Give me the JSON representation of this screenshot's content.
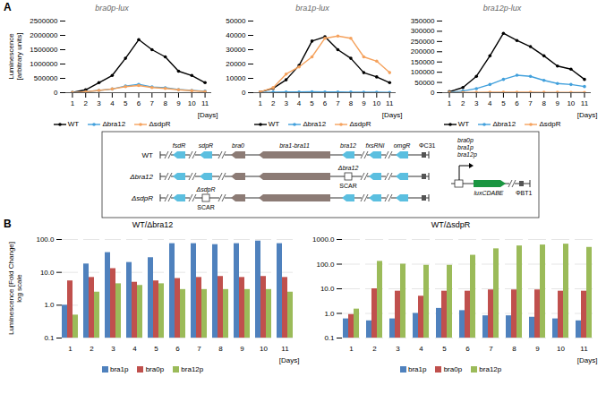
{
  "chart_data": [
    {
      "type": "line",
      "panel_label": "A",
      "title": "bra0p-lux",
      "x": [
        1,
        2,
        3,
        4,
        5,
        6,
        7,
        8,
        9,
        10,
        11
      ],
      "xlim": [
        0.5,
        11.5
      ],
      "xticks": [
        1,
        2,
        3,
        4,
        5,
        6,
        7,
        8,
        9,
        10,
        11
      ],
      "x_label": "[Days]",
      "y_label": "Luminescence [arbitrary units]",
      "ylim": [
        0,
        2500000
      ],
      "yticks": [
        0,
        500000,
        1000000,
        1500000,
        2000000,
        2500000
      ],
      "grid": false,
      "legend": "bottom",
      "series": [
        {
          "name": "WT",
          "color": "#000000",
          "marker": "circle",
          "values": [
            10000,
            100000,
            350000,
            600000,
            1200000,
            1850000,
            1500000,
            1250000,
            750000,
            600000,
            350000
          ]
        },
        {
          "name": "Δbra12",
          "color": "#41a0dc",
          "marker": "circle",
          "values": [
            5000,
            30000,
            80000,
            130000,
            230000,
            290000,
            200000,
            170000,
            110000,
            80000,
            50000
          ]
        },
        {
          "name": "ΔsdpR",
          "color": "#f5a25d",
          "marker": "circle",
          "values": [
            5000,
            30000,
            80000,
            130000,
            210000,
            250000,
            180000,
            150000,
            100000,
            70000,
            40000
          ]
        }
      ]
    },
    {
      "type": "line",
      "title": "bra1p-lux",
      "x": [
        1,
        2,
        3,
        4,
        5,
        6,
        7,
        8,
        9,
        10,
        11
      ],
      "xlim": [
        0.5,
        11.5
      ],
      "xticks": [
        1,
        2,
        3,
        4,
        5,
        6,
        7,
        8,
        9,
        10,
        11
      ],
      "x_label": "[Days]",
      "ylim": [
        0,
        50000
      ],
      "yticks": [
        0,
        10000,
        20000,
        30000,
        40000,
        50000
      ],
      "grid": false,
      "legend": "bottom",
      "series": [
        {
          "name": "WT",
          "color": "#000000",
          "marker": "circle",
          "values": [
            500,
            3000,
            9000,
            19000,
            36000,
            39000,
            30000,
            24000,
            14000,
            11000,
            7000
          ]
        },
        {
          "name": "Δbra12",
          "color": "#41a0dc",
          "marker": "circle",
          "values": [
            200,
            400,
            500,
            500,
            600,
            500,
            500,
            400,
            300,
            300,
            200
          ]
        },
        {
          "name": "ΔsdpR",
          "color": "#f5a25d",
          "marker": "circle",
          "values": [
            500,
            3500,
            13000,
            18000,
            25000,
            38000,
            39500,
            38000,
            25000,
            22000,
            14000
          ]
        }
      ]
    },
    {
      "type": "line",
      "title": "bra12p-lux",
      "x": [
        1,
        2,
        3,
        4,
        5,
        6,
        7,
        8,
        9,
        10,
        11
      ],
      "xlim": [
        0.5,
        11.5
      ],
      "xticks": [
        1,
        2,
        3,
        4,
        5,
        6,
        7,
        8,
        9,
        10,
        11
      ],
      "x_label": "[Days]",
      "ylim": [
        0,
        350000
      ],
      "yticks": [
        0,
        50000,
        100000,
        150000,
        200000,
        250000,
        300000,
        350000
      ],
      "grid": false,
      "legend": "bottom",
      "series": [
        {
          "name": "WT",
          "color": "#000000",
          "marker": "circle",
          "values": [
            5000,
            25000,
            80000,
            180000,
            290000,
            255000,
            225000,
            180000,
            130000,
            115000,
            65000
          ]
        },
        {
          "name": "Δbra12",
          "color": "#41a0dc",
          "marker": "circle",
          "values": [
            1000,
            8000,
            20000,
            40000,
            65000,
            85000,
            80000,
            60000,
            45000,
            40000,
            30000
          ]
        },
        {
          "name": "ΔsdpR",
          "color": "#f5a25d",
          "marker": "circle",
          "values": [
            500,
            1000,
            1500,
            2000,
            2000,
            2000,
            2000,
            1500,
            1500,
            1000,
            1000
          ]
        }
      ]
    },
    {
      "type": "bar",
      "panel_label": "B",
      "title": "WT/Δbra12",
      "x": [
        1,
        2,
        3,
        4,
        5,
        6,
        7,
        8,
        9,
        10,
        11
      ],
      "x_label": "[Days]",
      "y_label": "Luminescence [Fold Change] log scale",
      "log": "y",
      "ylim": [
        0.1,
        100
      ],
      "yticks": [
        0.1,
        {
          "value": 1,
          "label": "1.0"
        },
        {
          "value": 10,
          "label": "10.0"
        },
        {
          "value": 100,
          "label": "100.0"
        }
      ],
      "grid": true,
      "legend": "bottom",
      "series": [
        {
          "name": "bra1p",
          "color": "#4f81bd",
          "values": [
            1.0,
            18,
            40,
            20,
            28,
            75,
            75,
            70,
            75,
            90,
            75
          ]
        },
        {
          "name": "bra0p",
          "color": "#c0504d",
          "values": [
            5.5,
            7,
            13,
            5,
            5.5,
            6.5,
            7,
            7.5,
            7,
            7.5,
            7
          ]
        },
        {
          "name": "bra12p",
          "color": "#9bbb59",
          "values": [
            0.5,
            2.5,
            4.5,
            4,
            4.5,
            3,
            3,
            3,
            3,
            3,
            2.5
          ]
        }
      ]
    },
    {
      "type": "bar",
      "title": "WT/ΔsdpR",
      "x": [
        1,
        2,
        3,
        4,
        5,
        6,
        7,
        8,
        9,
        10,
        11
      ],
      "x_label": "[Days]",
      "log": "y",
      "ylim": [
        0.1,
        1000
      ],
      "yticks": [
        0.1,
        {
          "value": 1,
          "label": "1.0"
        },
        {
          "value": 10,
          "label": "10.0"
        },
        {
          "value": 100,
          "label": "100.0"
        },
        {
          "value": 1000,
          "label": "1000.0"
        }
      ],
      "grid": true,
      "legend": "bottom",
      "series": [
        {
          "name": "bra1p",
          "color": "#4f81bd",
          "values": [
            0.6,
            0.5,
            0.6,
            1.0,
            1.6,
            1.3,
            0.8,
            0.8,
            0.7,
            0.6,
            0.5
          ]
        },
        {
          "name": "bra0p",
          "color": "#c0504d",
          "values": [
            0.9,
            10,
            8,
            5,
            8,
            8,
            9,
            9,
            9,
            8,
            8
          ]
        },
        {
          "name": "bra12p",
          "color": "#9bbb59",
          "values": [
            1.5,
            130,
            100,
            90,
            90,
            230,
            420,
            550,
            600,
            650,
            480
          ]
        }
      ]
    }
  ],
  "diagram": {
    "strains": [
      "WT",
      "Δbra12",
      "ΔsdpR"
    ],
    "genes": [
      "fsdR",
      "sdpR",
      "bra0",
      "bra1-bra11",
      "bra12",
      "fxsRNI",
      "omgR"
    ],
    "integration_site": "ΦC31",
    "scars": [
      {
        "strain_index": 1,
        "gene": "bra12",
        "label": "Δbra12",
        "text": "SCAR"
      },
      {
        "strain_index": 2,
        "gene": "sdpR",
        "label": "ΔsdpR",
        "text": "SCAR"
      }
    ],
    "construct": {
      "promoters": [
        "bra0p",
        "bra1p",
        "bra12p"
      ],
      "reporter": "luxCDABE",
      "integration_site": "ΦBT1"
    }
  }
}
